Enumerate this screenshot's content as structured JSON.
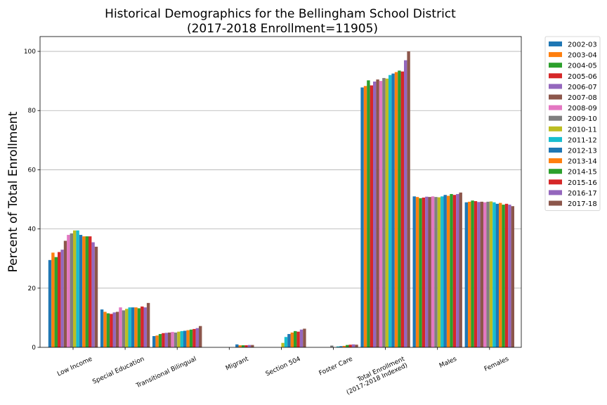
{
  "chart_data": {
    "type": "bar",
    "title": "Historical Demographics for the Bellingham School District",
    "subtitle": "(2017-2018 Enrollment=11905)",
    "xlabel": "",
    "ylabel": "Percent of Total Enrollment",
    "ylim": [
      0,
      105
    ],
    "yticks": [
      0,
      20,
      40,
      60,
      80,
      100
    ],
    "grid": "y",
    "legend_position": "outside-right",
    "categories": [
      "Low Income",
      "Special Education",
      "Transitional Bilingual",
      "Migrant",
      "Section 504",
      "Foster Care",
      "Total Enrollment\n(2017-2018 Indexed)",
      "Males",
      "Females"
    ],
    "series": [
      {
        "name": "2002-03",
        "color": "#1f77b4",
        "values": [
          29.5,
          12.8,
          3.8,
          0,
          0,
          0,
          87.8,
          51.0,
          49.0
        ]
      },
      {
        "name": "2003-04",
        "color": "#ff7f0e",
        "values": [
          32.0,
          12.0,
          4.0,
          0,
          0,
          0,
          88.3,
          50.8,
          49.2
        ]
      },
      {
        "name": "2004-05",
        "color": "#2ca02c",
        "values": [
          30.5,
          11.5,
          4.5,
          0,
          0,
          0,
          90.2,
          50.4,
          49.6
        ]
      },
      {
        "name": "2005-06",
        "color": "#d62728",
        "values": [
          32.2,
          11.3,
          4.8,
          0,
          0,
          0,
          88.5,
          50.6,
          49.4
        ]
      },
      {
        "name": "2006-07",
        "color": "#9467bd",
        "values": [
          33.0,
          11.8,
          4.9,
          0,
          0,
          0,
          89.8,
          50.9,
          49.1
        ]
      },
      {
        "name": "2007-08",
        "color": "#8c564b",
        "values": [
          36.0,
          12.0,
          5.0,
          0,
          0,
          0,
          90.5,
          50.8,
          49.2
        ]
      },
      {
        "name": "2008-09",
        "color": "#e377c2",
        "values": [
          38.0,
          13.5,
          5.2,
          0,
          0,
          0,
          90.0,
          51.0,
          49.0
        ]
      },
      {
        "name": "2009-10",
        "color": "#7f7f7f",
        "values": [
          38.5,
          12.5,
          5.0,
          0,
          0,
          0.6,
          91.0,
          50.8,
          49.2
        ]
      },
      {
        "name": "2010-11",
        "color": "#bcbd22",
        "values": [
          39.5,
          13.0,
          5.3,
          0,
          1.5,
          0,
          90.8,
          50.7,
          49.3
        ]
      },
      {
        "name": "2011-12",
        "color": "#17becf",
        "values": [
          39.5,
          13.5,
          5.5,
          0,
          3.5,
          0.3,
          92.0,
          51.0,
          49.0
        ]
      },
      {
        "name": "2012-13",
        "color": "#1f77b4",
        "values": [
          38.0,
          13.5,
          5.6,
          1.0,
          4.5,
          0.4,
          92.5,
          51.5,
          48.5
        ]
      },
      {
        "name": "2013-14",
        "color": "#ff7f0e",
        "values": [
          37.5,
          13.5,
          5.8,
          0.7,
          5.0,
          0.5,
          93.0,
          51.2,
          48.8
        ]
      },
      {
        "name": "2014-15",
        "color": "#2ca02c",
        "values": [
          37.5,
          13.2,
          6.0,
          0.7,
          5.5,
          0.8,
          93.5,
          51.8,
          48.2
        ]
      },
      {
        "name": "2015-16",
        "color": "#d62728",
        "values": [
          37.5,
          13.8,
          6.2,
          0.7,
          5.3,
          0.9,
          93.2,
          51.5,
          48.5
        ]
      },
      {
        "name": "2016-17",
        "color": "#9467bd",
        "values": [
          35.5,
          13.5,
          6.5,
          0.8,
          6.0,
          1.0,
          97.0,
          51.8,
          48.2
        ]
      },
      {
        "name": "2017-18",
        "color": "#8c564b",
        "values": [
          34.0,
          15.0,
          7.2,
          0.8,
          6.3,
          0.9,
          100.0,
          52.3,
          47.7
        ]
      }
    ]
  }
}
